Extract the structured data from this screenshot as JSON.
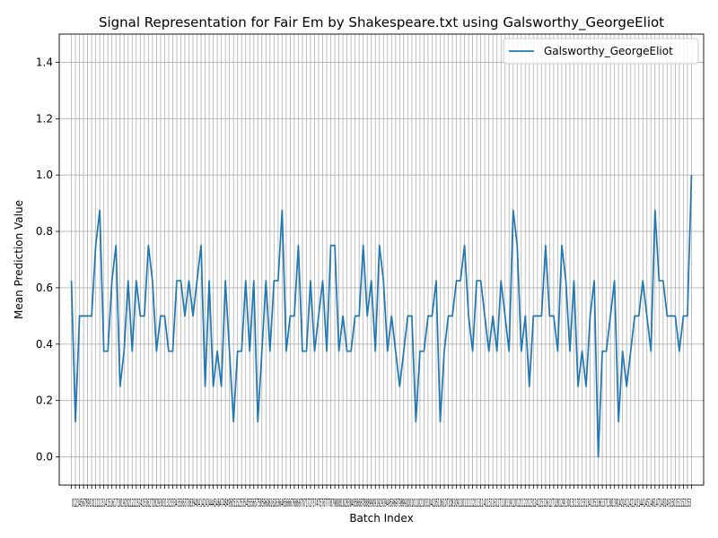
{
  "chart_data": {
    "type": "line",
    "title": "Signal Representation for Fair Em by Shakespeare.txt using Galsworthy_GeorgeEliot",
    "xlabel": "Batch Index",
    "ylabel": "Mean Prediction Value",
    "xlim": [
      -3,
      156
    ],
    "ylim": [
      -0.1,
      1.5
    ],
    "yticks": [
      0.0,
      0.2,
      0.4,
      0.6,
      0.8,
      1.0,
      1.2,
      1.4
    ],
    "ytick_labels": [
      "0.0",
      "0.2",
      "0.4",
      "0.6",
      "0.8",
      "1.0",
      "1.2",
      "1.4"
    ],
    "grid": true,
    "legend_position": "upper-right",
    "line_color": "#1f77b4",
    "x_tick_labels_overlapping": "0123456789101112131415161718192021222324252627282930313233343536373839404142434445464748495051525354555657585960616263646566676869707172737475767778798081828384858687888990919293949596979899100101102103104105106107108109110111112113114115116117118119120121122123124125126127128129130131132133134135136137138139140141142143144145146147148149150151152153",
    "series": [
      {
        "name": "Galsworthy_GeorgeEliot",
        "x_start": 0,
        "values": [
          0.625,
          0.125,
          0.5,
          0.5,
          0.5,
          0.5,
          0.75,
          0.875,
          0.375,
          0.375,
          0.625,
          0.75,
          0.25,
          0.375,
          0.625,
          0.375,
          0.625,
          0.5,
          0.5,
          0.75,
          0.625,
          0.375,
          0.5,
          0.5,
          0.375,
          0.375,
          0.625,
          0.625,
          0.5,
          0.625,
          0.5,
          0.625,
          0.75,
          0.25,
          0.625,
          0.25,
          0.375,
          0.25,
          0.625,
          0.375,
          0.125,
          0.375,
          0.375,
          0.625,
          0.375,
          0.625,
          0.125,
          0.375,
          0.625,
          0.375,
          0.625,
          0.625,
          0.875,
          0.375,
          0.5,
          0.5,
          0.75,
          0.375,
          0.375,
          0.625,
          0.375,
          0.5,
          0.625,
          0.375,
          0.75,
          0.75,
          0.375,
          0.5,
          0.375,
          0.375,
          0.5,
          0.5,
          0.75,
          0.5,
          0.625,
          0.375,
          0.75,
          0.625,
          0.375,
          0.5,
          0.375,
          0.25,
          0.375,
          0.5,
          0.5,
          0.125,
          0.375,
          0.375,
          0.5,
          0.5,
          0.625,
          0.125,
          0.375,
          0.5,
          0.5,
          0.625,
          0.625,
          0.75,
          0.5,
          0.375,
          0.625,
          0.625,
          0.5,
          0.375,
          0.5,
          0.375,
          0.625,
          0.5,
          0.375,
          0.875,
          0.75,
          0.375,
          0.5,
          0.25,
          0.5,
          0.5,
          0.5,
          0.75,
          0.5,
          0.5,
          0.375,
          0.75,
          0.625,
          0.375,
          0.625,
          0.25,
          0.375,
          0.25,
          0.5,
          0.625,
          0.0,
          0.375,
          0.375,
          0.5,
          0.625,
          0.125,
          0.375,
          0.25,
          0.375,
          0.5,
          0.5,
          0.625,
          0.5,
          0.375,
          0.875,
          0.625,
          0.625,
          0.5,
          0.5,
          0.5,
          0.375,
          0.5,
          0.5,
          1.0
        ]
      }
    ]
  }
}
